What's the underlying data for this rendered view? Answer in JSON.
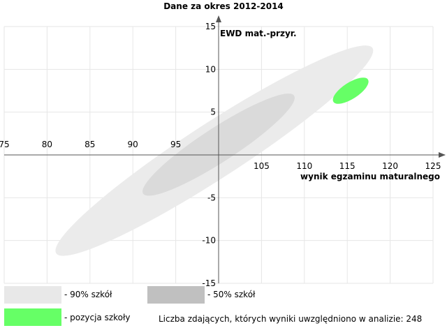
{
  "chart_data": {
    "type": "scatter",
    "title": "Dane za okres 2012-2014",
    "xlabel": "wynik egzaminu maturalnego",
    "ylabel": "EWD mat.-przyr.",
    "xlim": [
      75,
      125
    ],
    "ylim": [
      -15,
      15
    ],
    "x_ticks": [
      75,
      80,
      85,
      90,
      95,
      100,
      105,
      110,
      115,
      120,
      125
    ],
    "y_ticks": [
      -15,
      -10,
      -5,
      0,
      5,
      10,
      15
    ],
    "grid": true,
    "series": [
      {
        "name": "90% szkół",
        "shape": "ellipse",
        "color": "#ebebeb",
        "center": [
          99.5,
          0.5
        ],
        "semi_axis_major": 22,
        "semi_axis_minor": 3.2,
        "angle_deg": 33
      },
      {
        "name": "50% szkół",
        "shape": "ellipse",
        "color": "#dadada",
        "center": [
          100,
          1.2
        ],
        "semi_axis_major": 10.5,
        "semi_axis_minor": 2.0,
        "angle_deg": 33
      },
      {
        "name": "pozycja szkoły",
        "shape": "ellipse",
        "color": "#66ff66",
        "center": [
          115.4,
          7.5
        ],
        "semi_axis_major": 2.4,
        "semi_axis_minor": 0.95,
        "angle_deg": 33
      }
    ],
    "legend": {
      "placement": "bottom",
      "items": [
        {
          "label": "- 90% szkół",
          "color": "#e8e8e8"
        },
        {
          "label": "- 50% szkół",
          "color": "#c0c0c0"
        },
        {
          "label": "- pozycja szkoły",
          "color": "#66ff66"
        }
      ]
    },
    "note": "Liczba zdających, których wyniki uwzględniono w analizie: 248"
  }
}
